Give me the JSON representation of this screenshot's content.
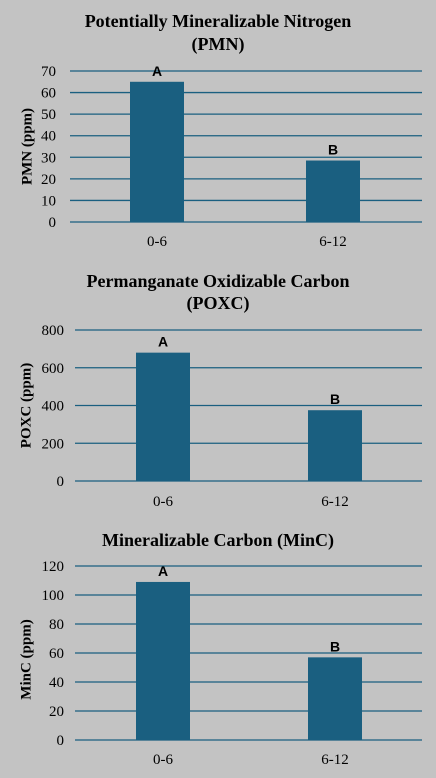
{
  "colors": {
    "bar": "#1a5f80",
    "grid": "#1a5f80",
    "background": "#c3c3c3"
  },
  "chart_data": [
    {
      "type": "bar",
      "title_line1": "Potentially Mineralizable Nitrogen",
      "title_line2": "(PMN)",
      "ylabel": "PMN (ppm)",
      "categories": [
        "0-6",
        "6-12"
      ],
      "values": [
        65,
        28.5
      ],
      "bar_labels": [
        "A",
        "B"
      ],
      "yticks": [
        0,
        10,
        20,
        30,
        40,
        50,
        60,
        70
      ],
      "ylim": [
        0,
        70
      ],
      "grid": true
    },
    {
      "type": "bar",
      "title_line1": "Permanganate Oxidizable Carbon",
      "title_line2": "(POXC)",
      "ylabel": "POXC (ppm)",
      "categories": [
        "0-6",
        "6-12"
      ],
      "values": [
        680,
        375
      ],
      "bar_labels": [
        "A",
        "B"
      ],
      "yticks": [
        0,
        200,
        400,
        600,
        800
      ],
      "ylim": [
        0,
        800
      ],
      "grid": true
    },
    {
      "type": "bar",
      "title_line1": "Mineralizable Carbon (MinC)",
      "title_line2": "",
      "ylabel": "MinC (ppm)",
      "categories": [
        "0-6",
        "6-12"
      ],
      "values": [
        109,
        57
      ],
      "bar_labels": [
        "A",
        "B"
      ],
      "yticks": [
        0,
        20,
        40,
        60,
        80,
        100,
        120
      ],
      "ylim": [
        0,
        120
      ],
      "grid": true
    }
  ]
}
